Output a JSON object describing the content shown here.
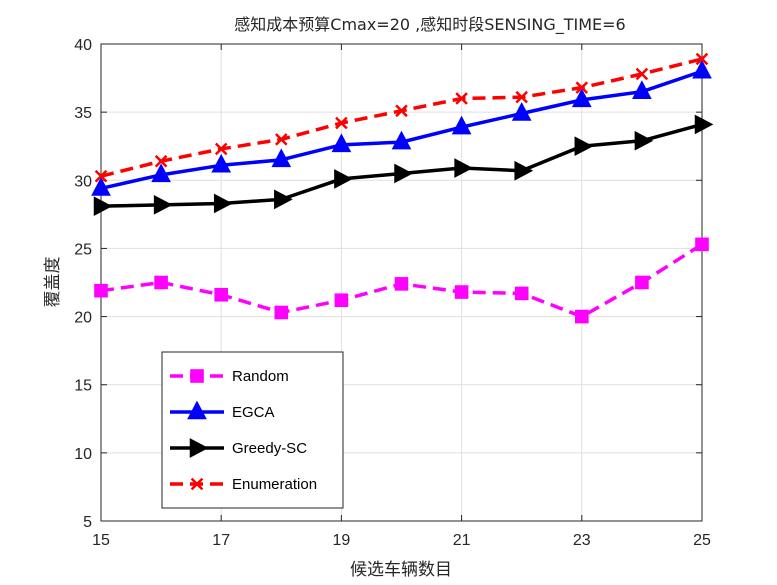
{
  "chart_data": {
    "type": "line",
    "title": "感知成本预算Cmax=20 ,感知时段SENSING_TIME=6",
    "xlabel": "候选车辆数目",
    "ylabel": "覆盖度",
    "x": [
      15,
      16,
      17,
      18,
      19,
      20,
      21,
      22,
      23,
      24,
      25
    ],
    "xlim": [
      15,
      25
    ],
    "ylim": [
      5,
      40
    ],
    "xticks": [
      "15",
      "17",
      "19",
      "21",
      "23",
      "25"
    ],
    "yticks": [
      "5",
      "10",
      "15",
      "20",
      "25",
      "30",
      "35",
      "40"
    ],
    "grid": true,
    "legend_position": "lower-left",
    "series": [
      {
        "name": "Random",
        "color": "#ff00ff",
        "line_style": "dashed",
        "marker": "square",
        "values": [
          21.9,
          22.5,
          21.6,
          20.3,
          21.2,
          22.4,
          21.8,
          21.7,
          20.0,
          22.5,
          25.3
        ]
      },
      {
        "name": "EGCA",
        "color": "#0000ff",
        "line_style": "solid",
        "marker": "triangle-up",
        "values": [
          29.4,
          30.4,
          31.1,
          31.5,
          32.6,
          32.8,
          33.9,
          34.9,
          35.9,
          36.5,
          38.0
        ]
      },
      {
        "name": "Greedy-SC",
        "color": "#000000",
        "line_style": "solid",
        "marker": "triangle-right",
        "values": [
          28.1,
          28.2,
          28.3,
          28.6,
          30.1,
          30.5,
          30.9,
          30.7,
          32.5,
          32.9,
          34.1
        ]
      },
      {
        "name": "Enumeration",
        "color": "#ff0000",
        "line_style": "dashed",
        "marker": "x",
        "values": [
          30.3,
          31.4,
          32.3,
          33.0,
          34.2,
          35.1,
          36.0,
          36.1,
          36.8,
          37.8,
          38.9
        ]
      }
    ]
  }
}
